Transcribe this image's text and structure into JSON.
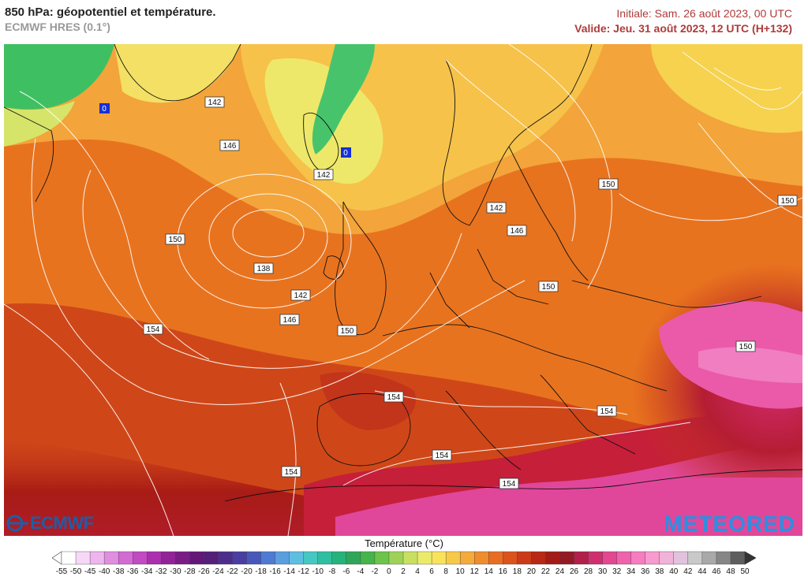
{
  "header": {
    "title": "850 hPa: géopotentiel et température.",
    "subtitle": "ECMWF HRES (0.1°)",
    "initial": "Initiale: Sam. 26 août 2023, 00 UTC",
    "valid": "Valide: Jeu. 31 août 2023, 12 UTC (H+132)"
  },
  "map": {
    "contour_labels": [
      "142",
      "146",
      "142",
      "150",
      "138",
      "142",
      "146",
      "150",
      "154",
      "142",
      "146",
      "150",
      "150",
      "150",
      "150",
      "154",
      "154",
      "154",
      "154",
      "154",
      "0",
      "0"
    ]
  },
  "logos": {
    "left": "ECMWF",
    "right": "METEORED"
  },
  "legend": {
    "title": "Température (°C)",
    "ticks": [
      "-55",
      "-50",
      "-45",
      "-40",
      "-38",
      "-36",
      "-34",
      "-32",
      "-30",
      "-28",
      "-26",
      "-24",
      "-22",
      "-20",
      "-18",
      "-16",
      "-14",
      "-12",
      "-10",
      "-8",
      "-6",
      "-4",
      "-2",
      "0",
      "2",
      "4",
      "6",
      "8",
      "10",
      "12",
      "14",
      "16",
      "18",
      "20",
      "22",
      "24",
      "26",
      "28",
      "30",
      "32",
      "34",
      "36",
      "38",
      "40",
      "42",
      "44",
      "46",
      "48",
      "50"
    ],
    "colors": [
      "#ffffff",
      "#f6d8f6",
      "#eeb5ee",
      "#e08ee0",
      "#d46bd4",
      "#c24ac2",
      "#ab2fae",
      "#922396",
      "#7a1c85",
      "#641877",
      "#54207a",
      "#4d2d8c",
      "#4a3ea3",
      "#4758bd",
      "#4f7ad4",
      "#5a9ee0",
      "#5cbfe0",
      "#46c7c2",
      "#2fbfa0",
      "#25b37c",
      "#2ea65a",
      "#45b44a",
      "#6cc44a",
      "#9ed256",
      "#c8e061",
      "#eaeb6a",
      "#f8e35a",
      "#f7c948",
      "#f4ab3b",
      "#ef8c2e",
      "#e86d23",
      "#dc521b",
      "#cb3b17",
      "#b82814",
      "#a11c16",
      "#931a24",
      "#b21f4a",
      "#cf2f6e",
      "#e34891",
      "#ef62ac",
      "#f77cc0",
      "#f899cf",
      "#f2b3d8",
      "#e2c2dc",
      "#c9c9c9",
      "#a9a9a9",
      "#868686",
      "#5e5e5e"
    ]
  },
  "colors": {
    "title_red": "#b03a3a",
    "zero_badge": "#1530d8"
  }
}
